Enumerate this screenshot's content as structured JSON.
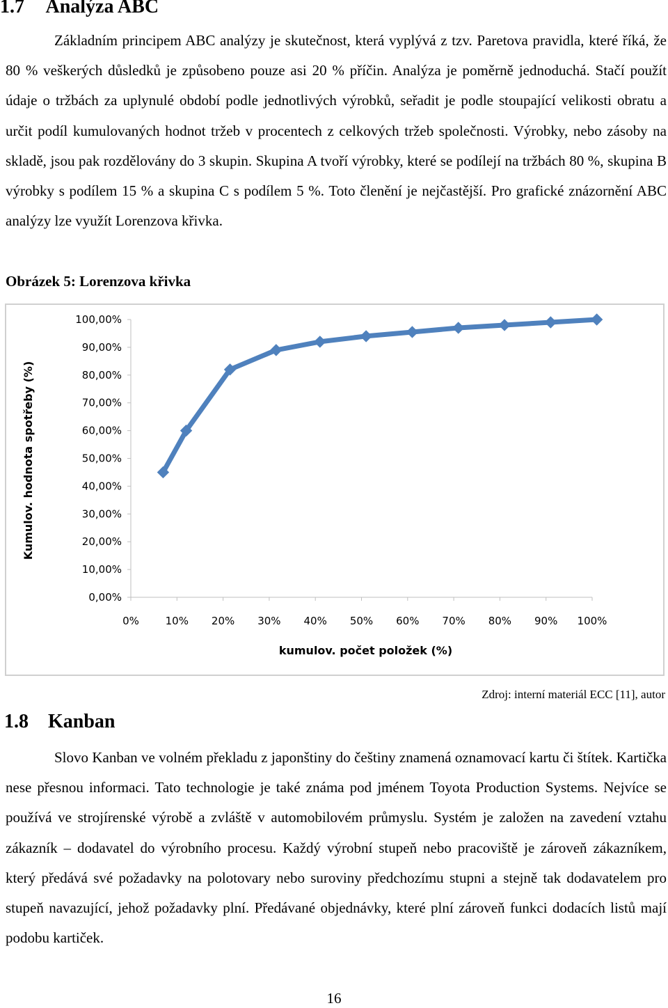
{
  "section1": {
    "number": "1.7",
    "title": "Analýza ABC",
    "paragraph": "Základním principem ABC analýzy je skutečnost, která vyplývá z tzv. Paretova pravidla, které říká, že 80 % veškerých důsledků je způsobeno pouze asi 20 % příčin. Analýza je poměrně jednoduchá. Stačí použít údaje o tržbách za uplynulé období podle jednotlivých výrobků, seřadit je podle stoupající velikosti obratu a určit podíl kumulovaných hodnot tržeb v procentech z celkových tržeb společnosti. Výrobky, nebo zásoby na skladě, jsou pak rozdělovány do 3 skupin. Skupina A tvoří výrobky, které se podílejí na tržbách 80 %, skupina B výrobky s podílem 15 % a skupina C s podílem 5 %. Toto členění je nejčastější. Pro grafické znázornění ABC analýzy lze využít Lorenzova křivka.",
    "figure_caption": "Obrázek 5: Lorenzova křivka",
    "figure_source": "Zdroj: interní materiál ECC [11], autor"
  },
  "chart_data": {
    "type": "line",
    "xlabel": "kumulov. počet položek (%)",
    "ylabel": "Kumulov. hodnota spotřeby (%)",
    "x_ticks": [
      "0%",
      "10%",
      "20%",
      "30%",
      "40%",
      "50%",
      "60%",
      "70%",
      "80%",
      "90%",
      "100%"
    ],
    "y_ticks": [
      "0,00%",
      "10,00%",
      "20,00%",
      "30,00%",
      "40,00%",
      "50,00%",
      "60,00%",
      "70,00%",
      "80,00%",
      "90,00%",
      "100,00%"
    ],
    "xlim": [
      0,
      100
    ],
    "ylim": [
      0,
      100
    ],
    "grid": false,
    "line_color": "#4f81bd",
    "series": [
      {
        "x": [
          7,
          12,
          21.5,
          31.5,
          41,
          51,
          61,
          71,
          81,
          91,
          101
        ],
        "y": [
          45,
          60,
          82,
          89,
          92,
          94,
          95.5,
          97,
          98,
          99,
          100
        ]
      }
    ]
  },
  "section2": {
    "number": "1.8",
    "title": "Kanban",
    "paragraph": "Slovo Kanban ve volném překladu z japonštiny do češtiny znamená oznamovací kartu či štítek. Kartička nese přesnou informaci. Tato technologie je také známa pod jménem Toyota Production Systems. Nejvíce se používá ve strojírenské výrobě a zvláště v automobilovém průmyslu. Systém je založen na zavedení vztahu zákazník – dodavatel do výrobního procesu. Každý výrobní stupeň nebo pracoviště je zároveň zákazníkem, který předává své požadavky na polotovary nebo suroviny předchozímu stupni a stejně tak dodavatelem pro stupeň navazující, jehož požadavky plní. Předávané objednávky, které plní zároveň funkci dodacích listů mají podobu kartiček."
  },
  "page_number": "16"
}
